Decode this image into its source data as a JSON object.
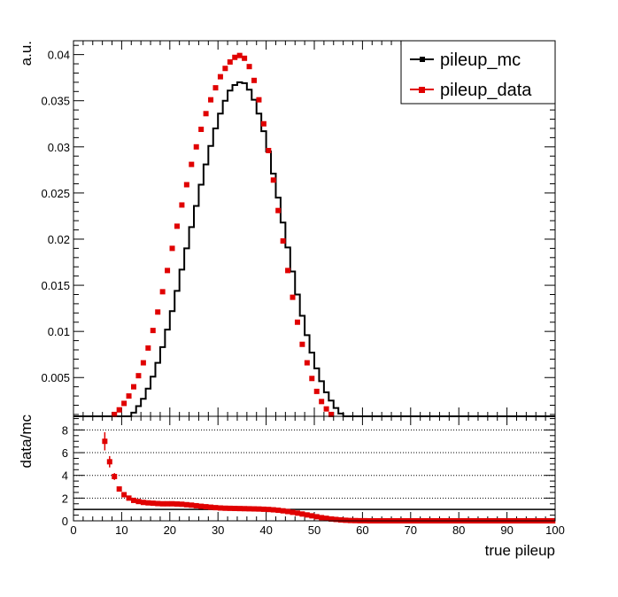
{
  "chart_data": [
    {
      "type": "line",
      "panel": "main",
      "ylabel": "a.u.",
      "xlim": [
        0,
        100
      ],
      "ylim": [
        0.0008,
        0.0415
      ],
      "yticks": [
        {
          "v": 0.005,
          "label": "0.005"
        },
        {
          "v": 0.01,
          "label": "0.01"
        },
        {
          "v": 0.015,
          "label": "0.015"
        },
        {
          "v": 0.02,
          "label": "0.02"
        },
        {
          "v": 0.025,
          "label": "0.025"
        },
        {
          "v": 0.03,
          "label": "0.03"
        },
        {
          "v": 0.035,
          "label": "0.035"
        },
        {
          "v": 0.04,
          "label": "0.04"
        }
      ],
      "legend": {
        "position": "top-right",
        "entries": [
          "pileup_mc",
          "pileup_data"
        ]
      },
      "series": [
        {
          "name": "pileup_mc",
          "style": "histogram",
          "color": "#000000",
          "bin_edges": [
            0,
            100
          ],
          "bin_width": 1,
          "values": [
            0,
            0,
            0,
            0,
            0,
            0,
            0,
            0,
            0.0001,
            0.0002,
            0.0004,
            0.0007,
            0.0012,
            0.0019,
            0.0027,
            0.0038,
            0.0051,
            0.0066,
            0.0083,
            0.0102,
            0.0122,
            0.0144,
            0.0167,
            0.019,
            0.0213,
            0.0236,
            0.0259,
            0.0281,
            0.0301,
            0.032,
            0.0336,
            0.035,
            0.0361,
            0.0367,
            0.037,
            0.0369,
            0.0362,
            0.0351,
            0.0336,
            0.0317,
            0.0295,
            0.0271,
            0.0245,
            0.0218,
            0.0191,
            0.0165,
            0.014,
            0.0117,
            0.0096,
            0.0077,
            0.006,
            0.0046,
            0.0034,
            0.0025,
            0.0017,
            0.0011,
            0.0007,
            0.0004,
            0.0002,
            0.0001,
            0.0001,
            0,
            0,
            0,
            0,
            0,
            0,
            0,
            0,
            0,
            0,
            0,
            0,
            0,
            0,
            0,
            0,
            0,
            0,
            0,
            0,
            0,
            0,
            0,
            0,
            0,
            0,
            0,
            0,
            0,
            0,
            0,
            0,
            0,
            0,
            0,
            0,
            0,
            0,
            0
          ]
        },
        {
          "name": "pileup_data",
          "style": "markers",
          "color": "#e00000",
          "x": [
            0.5,
            1.5,
            2.5,
            3.5,
            4.5,
            5.5,
            6.5,
            7.5,
            8.5,
            9.5,
            10.5,
            11.5,
            12.5,
            13.5,
            14.5,
            15.5,
            16.5,
            17.5,
            18.5,
            19.5,
            20.5,
            21.5,
            22.5,
            23.5,
            24.5,
            25.5,
            26.5,
            27.5,
            28.5,
            29.5,
            30.5,
            31.5,
            32.5,
            33.5,
            34.5,
            35.5,
            36.5,
            37.5,
            38.5,
            39.5,
            40.5,
            41.5,
            42.5,
            43.5,
            44.5,
            45.5,
            46.5,
            47.5,
            48.5,
            49.5,
            50.5,
            51.5,
            52.5,
            53.5,
            54.5,
            55.5,
            56.5,
            57.5,
            58.5,
            59.5
          ],
          "values": [
            0,
            0,
            0,
            0,
            0,
            0.0001,
            0.0003,
            0.0006,
            0.001,
            0.0015,
            0.0022,
            0.003,
            0.004,
            0.0052,
            0.0066,
            0.0082,
            0.0101,
            0.0121,
            0.0143,
            0.0166,
            0.019,
            0.0214,
            0.0237,
            0.0259,
            0.0281,
            0.03,
            0.0319,
            0.0336,
            0.0351,
            0.0364,
            0.0376,
            0.0385,
            0.0392,
            0.0397,
            0.0399,
            0.0396,
            0.0387,
            0.0372,
            0.0351,
            0.0325,
            0.0296,
            0.0264,
            0.0231,
            0.0198,
            0.0166,
            0.0137,
            0.011,
            0.0086,
            0.0066,
            0.0049,
            0.0035,
            0.0024,
            0.0016,
            0.001,
            0.0006,
            0.0003,
            0.0002,
            0.0001,
            0,
            0
          ]
        }
      ]
    },
    {
      "type": "scatter",
      "panel": "ratio",
      "xlabel": "true pileup",
      "ylabel": "data/mc",
      "xlim": [
        0,
        100
      ],
      "ylim": [
        0,
        9.2
      ],
      "xticks": [
        0,
        10,
        20,
        30,
        40,
        50,
        60,
        70,
        80,
        90,
        100
      ],
      "yticks": [
        0,
        2,
        4,
        6,
        8
      ],
      "dotted_gridlines": [
        2,
        4,
        6,
        8
      ],
      "reference_line": 1,
      "series": [
        {
          "name": "data/mc",
          "color": "#e00000",
          "x": [
            6.5,
            7.5,
            8.5,
            9.5,
            10.5,
            11.5,
            12.5,
            13.5,
            14.5,
            15.5,
            16.5,
            17.5,
            18.5,
            19.5,
            20.5,
            21.5,
            22.5,
            23.5,
            24.5,
            25.5,
            26.5,
            27.5,
            28.5,
            29.5,
            30.5,
            31.5,
            32.5,
            33.5,
            34.5,
            35.5,
            36.5,
            37.5,
            38.5,
            39.5,
            40.5,
            41.5,
            42.5,
            43.5,
            44.5,
            45.5,
            46.5,
            47.5,
            48.5,
            49.5,
            50.5,
            51.5,
            52.5,
            53.5,
            54.5,
            55.5,
            56.5,
            57.5,
            58.5,
            59.5,
            60.5,
            61.5,
            62.5,
            63.5,
            64.5,
            65.5,
            66.5,
            67.5,
            68.5,
            69.5,
            70.5,
            71.5,
            72.5,
            73.5,
            74.5,
            75.5,
            76.5,
            77.5,
            78.5,
            79.5,
            80.5,
            81.5,
            82.5,
            83.5,
            84.5,
            85.5,
            86.5,
            87.5,
            88.5,
            89.5,
            90.5,
            91.5,
            92.5,
            93.5,
            94.5,
            95.5,
            96.5,
            97.5,
            98.5,
            99.5
          ],
          "values": [
            7.0,
            5.2,
            3.9,
            2.8,
            2.3,
            2.0,
            1.8,
            1.7,
            1.62,
            1.58,
            1.55,
            1.52,
            1.5,
            1.5,
            1.5,
            1.48,
            1.46,
            1.42,
            1.38,
            1.33,
            1.28,
            1.24,
            1.2,
            1.16,
            1.13,
            1.11,
            1.1,
            1.09,
            1.08,
            1.07,
            1.06,
            1.05,
            1.04,
            1.02,
            1.0,
            0.97,
            0.93,
            0.88,
            0.82,
            0.75,
            0.68,
            0.6,
            0.52,
            0.44,
            0.36,
            0.28,
            0.22,
            0.16,
            0.12,
            0.08,
            0.05,
            0.03,
            0.02,
            0.01,
            0.01,
            0,
            0,
            0,
            0,
            0,
            0,
            0,
            0,
            0,
            0,
            0,
            0,
            0,
            0,
            0,
            0,
            0,
            0,
            0,
            0,
            0,
            0,
            0,
            0,
            0,
            0,
            0,
            0,
            0,
            0,
            0,
            0,
            0,
            0,
            0,
            0,
            0,
            0,
            0
          ],
          "errors": [
            0.8,
            0.5,
            0.3,
            0.2,
            0.15,
            0.1,
            0.08,
            0.06,
            0.05,
            0.04,
            0.03,
            0.03,
            0.02,
            0.02,
            0.02,
            0.02,
            0.02,
            0.02,
            0.02,
            0.02,
            0.02,
            0.02,
            0.02,
            0.02,
            0.02,
            0.02,
            0.02,
            0.02,
            0.02,
            0.02,
            0.02,
            0.02,
            0.02,
            0.02,
            0.02,
            0.02,
            0.02,
            0.02,
            0.02,
            0.02,
            0.02,
            0.02,
            0.02,
            0.02,
            0.02,
            0.02,
            0.02,
            0.02,
            0.02,
            0.02,
            0.02,
            0.02,
            0.02,
            0.02,
            0.02,
            0,
            0,
            0,
            0,
            0,
            0,
            0,
            0,
            0,
            0,
            0,
            0,
            0,
            0,
            0,
            0,
            0,
            0,
            0,
            0,
            0,
            0,
            0,
            0,
            0,
            0,
            0,
            0,
            0,
            0,
            0,
            0,
            0,
            0,
            0,
            0,
            0,
            0,
            0
          ]
        }
      ]
    }
  ]
}
